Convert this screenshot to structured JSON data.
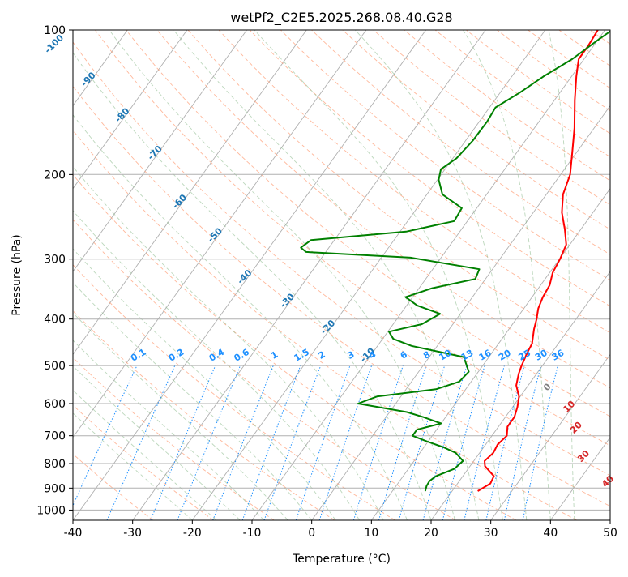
{
  "chart_data": {
    "type": "line",
    "title": "wetPf2_C2E5.2025.268.08.40.G28",
    "xlabel": "Temperature (°C)",
    "ylabel": "Pressure (hPa)",
    "xlim": [
      -40,
      50
    ],
    "ylim": [
      1050,
      100
    ],
    "y_scale": "log",
    "grid": true,
    "x_ticks": [
      -40,
      -30,
      -20,
      -10,
      0,
      10,
      20,
      30,
      40,
      50
    ],
    "y_ticks": [
      100,
      200,
      300,
      400,
      500,
      600,
      700,
      800,
      900,
      1000
    ],
    "colors": {
      "temperature": "#ff0000",
      "dewpoint": "#008000",
      "isotherm_labels": "#1f77b4",
      "mixing_ratio": "#1e90ff",
      "dry_adiabat": "#ffa07a",
      "moist_adiabat": "#8fbc8f",
      "moist_adiabat_labels": "#d62728",
      "grid": "#b0b0b0"
    },
    "isotherm_labels": [
      "-100",
      "-90",
      "-80",
      "-70",
      "-60",
      "-50",
      "-40",
      "-30",
      "-20",
      "-10"
    ],
    "mixing_ratio_labels": [
      "0.1",
      "0.2",
      "0.4",
      "0.6",
      "1",
      "1.5",
      "2",
      "3",
      "4",
      "6",
      "8",
      "10",
      "13",
      "16",
      "20",
      "25",
      "30",
      "36"
    ],
    "moist_adiabat_labels": [
      "0",
      "10",
      "20",
      "30",
      "40"
    ],
    "series": [
      {
        "name": "Temperature",
        "points": [
          [
            24.3,
            913
          ],
          [
            25.5,
            880
          ],
          [
            25.2,
            850
          ],
          [
            22.5,
            810
          ],
          [
            21.8,
            790
          ],
          [
            22.3,
            760
          ],
          [
            22.0,
            730
          ],
          [
            22.5,
            700
          ],
          [
            21.5,
            670
          ],
          [
            21.5,
            640
          ],
          [
            20.8,
            610
          ],
          [
            19.8,
            580
          ],
          [
            18.0,
            550
          ],
          [
            17.0,
            520
          ],
          [
            16.5,
            500
          ],
          [
            15.9,
            470
          ],
          [
            15.6,
            450
          ],
          [
            14.2,
            420
          ],
          [
            13.4,
            400
          ],
          [
            12.4,
            380
          ],
          [
            11.8,
            360
          ],
          [
            11.5,
            340
          ],
          [
            10.5,
            320
          ],
          [
            10.1,
            300
          ],
          [
            9.4,
            280
          ],
          [
            7.3,
            260
          ],
          [
            4.8,
            240
          ],
          [
            2.8,
            220
          ],
          [
            1.6,
            200
          ],
          [
            -0.7,
            180
          ],
          [
            -3.3,
            160
          ],
          [
            -6.6,
            140
          ],
          [
            -9.2,
            125
          ],
          [
            -10.9,
            115
          ],
          [
            -10.9,
            108
          ],
          [
            -11.2,
            100
          ]
        ]
      },
      {
        "name": "Dewpoint",
        "points": [
          [
            15.5,
            913
          ],
          [
            15.1,
            890
          ],
          [
            15.0,
            870
          ],
          [
            15.5,
            850
          ],
          [
            17.7,
            820
          ],
          [
            18.2,
            790
          ],
          [
            16.0,
            760
          ],
          [
            13.3,
            740
          ],
          [
            9.9,
            720
          ],
          [
            6.7,
            700
          ],
          [
            6.7,
            680
          ],
          [
            10.0,
            660
          ],
          [
            6.2,
            640
          ],
          [
            2.9,
            625
          ],
          [
            -6.3,
            600
          ],
          [
            -4.0,
            580
          ],
          [
            5.0,
            560
          ],
          [
            8.0,
            540
          ],
          [
            8.4,
            515
          ],
          [
            5.8,
            480
          ],
          [
            -4.3,
            455
          ],
          [
            -8.2,
            440
          ],
          [
            -9.8,
            425
          ],
          [
            -5.2,
            410
          ],
          [
            -3.4,
            390
          ],
          [
            -8.2,
            375
          ],
          [
            -11.2,
            360
          ],
          [
            -7.8,
            345
          ],
          [
            -1.7,
            330
          ],
          [
            -2.2,
            315
          ],
          [
            -15.1,
            298
          ],
          [
            -33.3,
            290
          ],
          [
            -34.7,
            284
          ],
          [
            -33.9,
            274
          ],
          [
            -19.0,
            263
          ],
          [
            -12.2,
            250
          ],
          [
            -12.5,
            235
          ],
          [
            -17.4,
            220
          ],
          [
            -19.8,
            205
          ],
          [
            -20.7,
            195
          ],
          [
            -19.4,
            185
          ],
          [
            -18.8,
            170
          ],
          [
            -18.7,
            155
          ],
          [
            -19.0,
            145
          ],
          [
            -16.7,
            135
          ],
          [
            -14.7,
            125
          ],
          [
            -12.0,
            115
          ],
          [
            -10.0,
            105
          ],
          [
            -8.8,
            100
          ]
        ]
      }
    ]
  }
}
